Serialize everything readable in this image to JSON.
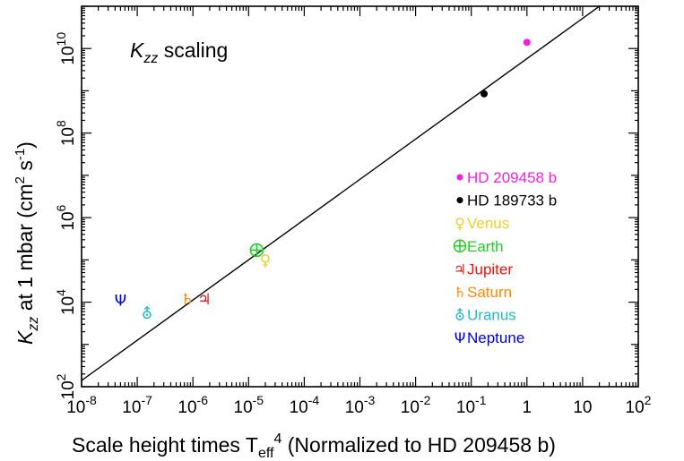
{
  "chart_data": {
    "type": "scatter",
    "title": "",
    "annotation": {
      "main": "K",
      "sub": "zz",
      "rest": " scaling"
    },
    "xlabel": {
      "main": "Scale height times T",
      "sub": "eff",
      "sup": "4",
      "rest": " (Normalized to HD 209458 b)"
    },
    "ylabel": {
      "k": "K",
      "sub": "zz",
      "mid": "  at 1 mbar (cm",
      "sup1": "2",
      "mid2": " s",
      "sup2": "-1",
      "end": ")"
    },
    "x_scale": "log",
    "y_scale": "log",
    "xlim": [
      1e-08,
      100
    ],
    "ylim": [
      100,
      100000000000.0
    ],
    "x_ticks": [
      {
        "exp": "-8"
      },
      {
        "exp": "-7"
      },
      {
        "exp": "-6"
      },
      {
        "exp": "-5"
      },
      {
        "exp": "-4"
      },
      {
        "exp": "-3"
      },
      {
        "exp": "-2"
      },
      {
        "exp": "-1"
      },
      {
        "plain": "1"
      },
      {
        "plain": "10"
      },
      {
        "exp": "2"
      }
    ],
    "y_ticks": [
      {
        "exp": "2",
        "value": 100
      },
      {
        "exp": "4",
        "value": 10000
      },
      {
        "exp": "6",
        "value": 1000000
      },
      {
        "exp": "8",
        "value": 100000000
      },
      {
        "exp": "10",
        "value": 10000000000
      }
    ],
    "fit_line": {
      "x": [
        1e-08,
        20
      ],
      "y": [
        140,
        100000000000.0
      ]
    },
    "points": [
      {
        "name": "HD 209458 b",
        "symbol": "●",
        "color": "#ee22dd",
        "x": 1.0,
        "y": 14000000000.0
      },
      {
        "name": "HD 189733 b",
        "symbol": "●",
        "color": "#000000",
        "x": 0.17,
        "y": 850000000.0
      },
      {
        "name": "Venus",
        "symbol": "♀",
        "color": "#e8d030",
        "x": 2e-05,
        "y": 100000.0
      },
      {
        "name": "Earth",
        "symbol": "⊕",
        "color": "#22cc22",
        "x": 1.4e-05,
        "y": 170000.0
      },
      {
        "name": "Jupiter",
        "symbol": "♃",
        "color": "#ee1111",
        "x": 1.6e-06,
        "y": 12000.0
      },
      {
        "name": "Saturn",
        "symbol": "♄",
        "color": "#ff8800",
        "x": 8e-07,
        "y": 12000.0
      },
      {
        "name": "Uranus",
        "symbol": "⛢",
        "color": "#22bbbb",
        "x": 1.5e-07,
        "y": 5500.0
      },
      {
        "name": "Neptune",
        "symbol": "Ψ",
        "color": "#0000dd",
        "x": 5e-08,
        "y": 11000.0
      }
    ],
    "legend_placement": "lower-right",
    "grid": false
  }
}
